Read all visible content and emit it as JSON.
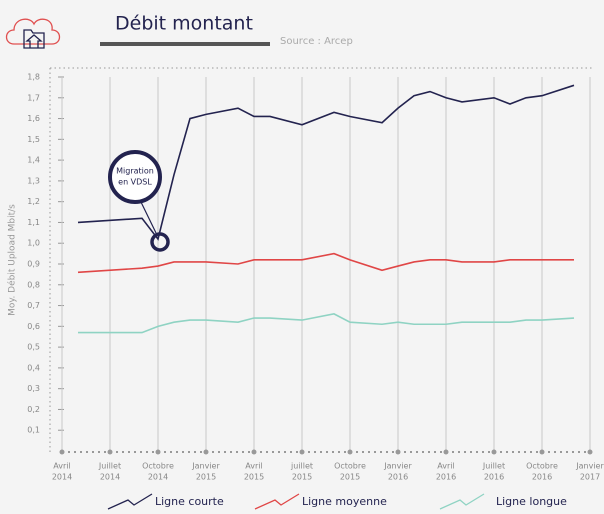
{
  "chart_data": {
    "type": "line",
    "title": "Débit montant",
    "subtitle": "Source : Arcep",
    "y_label": "Moy. Débit Upload Mbit/s",
    "annotation": [
      "Migration",
      "en VDSL"
    ],
    "x": [
      "2014-05",
      "2014-09",
      "2014-10",
      "2014-11",
      "2014-12",
      "2015-01",
      "2015-03",
      "2015-04",
      "2015-05",
      "2015-07",
      "2015-09",
      "2015-10",
      "2015-12",
      "2016-01",
      "2016-02",
      "2016-03",
      "2016-04",
      "2016-05",
      "2016-07",
      "2016-08",
      "2016-09",
      "2016-10",
      "2016-12"
    ],
    "series": [
      {
        "name": "Ligne courte",
        "color": "#23234f",
        "values": [
          1.1,
          1.12,
          1.02,
          1.33,
          1.6,
          1.62,
          1.65,
          1.61,
          1.61,
          1.57,
          1.63,
          1.61,
          1.58,
          1.65,
          1.71,
          1.73,
          1.7,
          1.68,
          1.7,
          1.67,
          1.7,
          1.71,
          1.76
        ]
      },
      {
        "name": "Ligne moyenne",
        "color": "#e04646",
        "values": [
          0.86,
          0.88,
          0.89,
          0.91,
          0.91,
          0.91,
          0.9,
          0.92,
          0.92,
          0.92,
          0.95,
          0.92,
          0.87,
          0.89,
          0.91,
          0.92,
          0.92,
          0.91,
          0.91,
          0.92,
          0.92,
          0.92,
          0.92
        ]
      },
      {
        "name": "Ligne longue",
        "color": "#8fd3c3",
        "values": [
          0.57,
          0.57,
          0.6,
          0.62,
          0.63,
          0.63,
          0.62,
          0.64,
          0.64,
          0.63,
          0.66,
          0.62,
          0.61,
          0.62,
          0.61,
          0.61,
          0.61,
          0.62,
          0.62,
          0.62,
          0.63,
          0.63,
          0.64
        ]
      }
    ],
    "xlim": [
      "2014-04",
      "2017-01"
    ],
    "xticks": [
      {
        "value": "2014-04",
        "label": [
          "Avril",
          "2014"
        ]
      },
      {
        "value": "2014-07",
        "label": [
          "Juillet",
          "2014"
        ]
      },
      {
        "value": "2014-10",
        "label": [
          "Octobre",
          "2014"
        ]
      },
      {
        "value": "2015-01",
        "label": [
          "Janvier",
          "2015"
        ]
      },
      {
        "value": "2015-04",
        "label": [
          "Avril",
          "2015"
        ]
      },
      {
        "value": "2015-07",
        "label": [
          "juillet",
          "2015"
        ]
      },
      {
        "value": "2015-10",
        "label": [
          "Octobre",
          "2015"
        ]
      },
      {
        "value": "2016-01",
        "label": [
          "Janvier",
          "2016"
        ]
      },
      {
        "value": "2016-04",
        "label": [
          "Avril",
          "2016"
        ]
      },
      {
        "value": "2016-07",
        "label": [
          "Juillet",
          "2016"
        ]
      },
      {
        "value": "2016-10",
        "label": [
          "Octobre",
          "2016"
        ]
      },
      {
        "value": "2017-01",
        "label": [
          "Janvier",
          "2017"
        ]
      }
    ],
    "ylim": [
      0,
      1.8
    ],
    "yticks": [
      {
        "value": 0.1,
        "label": "0,1"
      },
      {
        "value": 0.2,
        "label": "0,2"
      },
      {
        "value": 0.3,
        "label": "0,3"
      },
      {
        "value": 0.4,
        "label": "0,4"
      },
      {
        "value": 0.5,
        "label": "0,5"
      },
      {
        "value": 0.6,
        "label": "0,6"
      },
      {
        "value": 0.7,
        "label": "0,7"
      },
      {
        "value": 0.8,
        "label": "0,8"
      },
      {
        "value": 0.9,
        "label": "0,9"
      },
      {
        "value": 1.0,
        "label": "1,0"
      },
      {
        "value": 1.1,
        "label": "1,1"
      },
      {
        "value": 1.2,
        "label": "1,2"
      },
      {
        "value": 1.3,
        "label": "1,3"
      },
      {
        "value": 1.4,
        "label": "1,4"
      },
      {
        "value": 1.5,
        "label": "1,5"
      },
      {
        "value": 1.6,
        "label": "1,6"
      },
      {
        "value": 1.7,
        "label": "1,7"
      },
      {
        "value": 1.8,
        "label": "1,8"
      }
    ],
    "grid": true
  }
}
